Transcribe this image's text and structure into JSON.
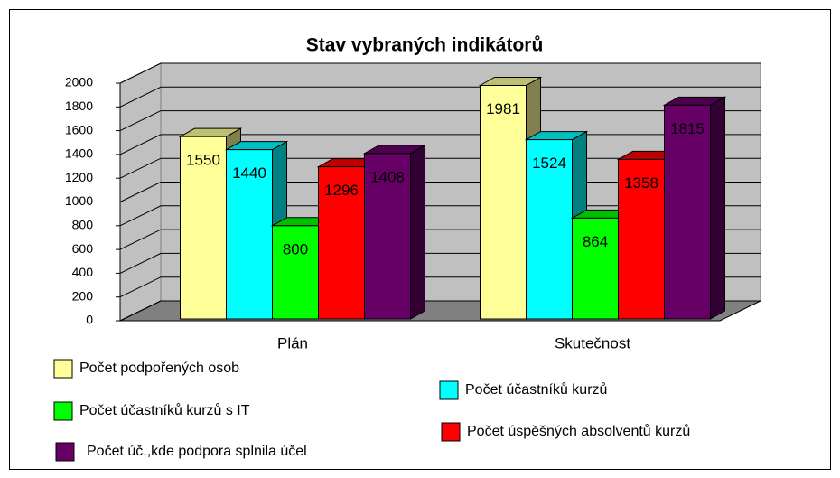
{
  "chart_data": {
    "type": "bar3d",
    "title": "Stav vybraných indikátorů",
    "categories": [
      "Plán",
      "Skutečnost"
    ],
    "series": [
      {
        "name": "Počet podpořených osob",
        "color": "#ffff99",
        "values": [
          1550,
          1981
        ]
      },
      {
        "name": "Počet účastníků kurzů",
        "color": "#00ffff",
        "values": [
          1440,
          1524
        ]
      },
      {
        "name": "Počet účastníků kurzů s IT",
        "color": "#00ff00",
        "values": [
          800,
          864
        ]
      },
      {
        "name": "Počet úspěšných absolventů kurzů",
        "color": "#ff0000",
        "values": [
          1296,
          1358
        ]
      },
      {
        "name": "Počet úč.,kde podpora splnila účel",
        "color": "#660066",
        "values": [
          1408,
          1815
        ]
      }
    ],
    "ylim": [
      0,
      2000
    ],
    "yticks": [
      0,
      200,
      400,
      600,
      800,
      1000,
      1200,
      1400,
      1600,
      1800,
      2000
    ],
    "grid": true
  }
}
